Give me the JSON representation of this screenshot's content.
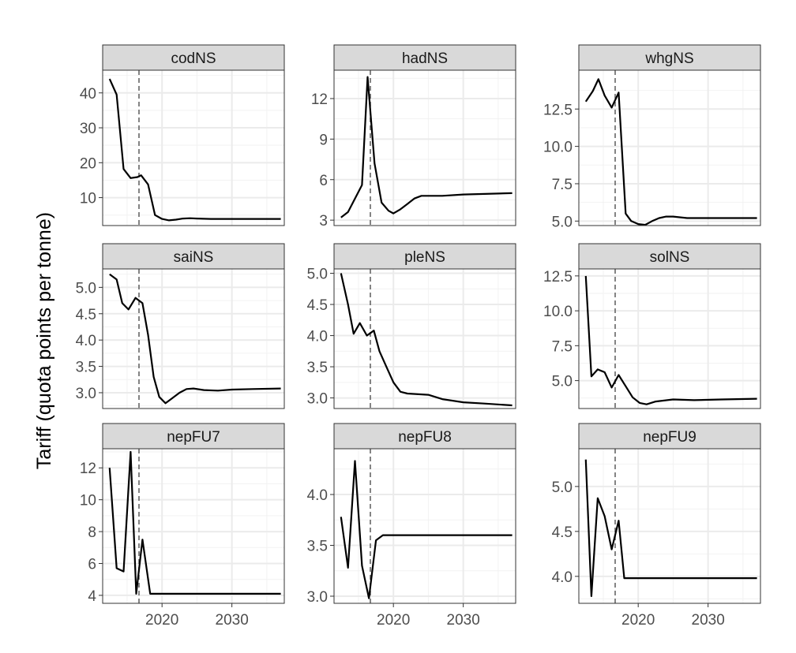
{
  "chart_data": {
    "type": "line",
    "ylabel": "Tariff (quota points per tonne)",
    "xlabel": "",
    "xlim": [
      2011.5,
      2037.5
    ],
    "x_ticks": [
      2020,
      2030
    ],
    "reference_line_x": 2016.7,
    "panels": [
      {
        "title": "codNS",
        "ylim": [
          2.0,
          46.5
        ],
        "y_ticks": [
          10,
          20,
          30,
          40
        ],
        "y_tick_labels": [
          "10",
          "20",
          "30",
          "40"
        ],
        "x": [
          2012.5,
          2013.5,
          2014.5,
          2015.5,
          2016.5,
          2017.0,
          2018.0,
          2019.0,
          2020.0,
          2021.0,
          2022.0,
          2023.0,
          2024.0,
          2025.0,
          2027.0,
          2030.0,
          2037.0
        ],
        "y": [
          44.0,
          39.5,
          18.2,
          15.6,
          15.9,
          16.4,
          13.8,
          5.0,
          3.9,
          3.5,
          3.7,
          4.0,
          4.1,
          4.0,
          3.9,
          3.9,
          3.9
        ]
      },
      {
        "title": "hadNS",
        "ylim": [
          2.6,
          14.1
        ],
        "y_ticks": [
          3,
          6,
          9,
          12
        ],
        "y_tick_labels": [
          "3",
          "6",
          "9",
          "12"
        ],
        "x": [
          2012.5,
          2013.5,
          2015.5,
          2016.3,
          2017.3,
          2018.3,
          2019.3,
          2020.0,
          2021.0,
          2022.0,
          2023.0,
          2024.0,
          2025.0,
          2027.0,
          2030.0,
          2037.0
        ],
        "y": [
          3.2,
          3.6,
          5.6,
          13.6,
          7.2,
          4.3,
          3.7,
          3.5,
          3.8,
          4.2,
          4.6,
          4.8,
          4.8,
          4.8,
          4.9,
          5.0
        ]
      },
      {
        "title": "whgNS",
        "ylim": [
          4.7,
          15.1
        ],
        "y_ticks": [
          5.0,
          7.5,
          10.0,
          12.5
        ],
        "y_tick_labels": [
          "5.0",
          "7.5",
          "10.0",
          "12.5"
        ],
        "x": [
          2012.5,
          2013.5,
          2014.3,
          2015.2,
          2016.2,
          2017.2,
          2018.2,
          2019.0,
          2020.0,
          2021.0,
          2022.0,
          2023.0,
          2024.0,
          2025.0,
          2027.0,
          2030.0,
          2037.0
        ],
        "y": [
          13.0,
          13.7,
          14.5,
          13.4,
          12.6,
          13.6,
          5.5,
          5.0,
          4.8,
          4.75,
          5.0,
          5.2,
          5.3,
          5.3,
          5.2,
          5.2,
          5.2
        ]
      },
      {
        "title": "saiNS",
        "ylim": [
          2.7,
          5.35
        ],
        "y_ticks": [
          3.0,
          3.5,
          4.0,
          4.5,
          5.0
        ],
        "y_tick_labels": [
          "3.0",
          "3.5",
          "4.0",
          "4.5",
          "5.0"
        ],
        "x": [
          2012.5,
          2013.5,
          2014.3,
          2015.2,
          2016.2,
          2017.2,
          2018.0,
          2018.8,
          2019.6,
          2020.5,
          2021.5,
          2022.5,
          2023.5,
          2024.5,
          2026.0,
          2028.0,
          2030.0,
          2033.0,
          2037.0
        ],
        "y": [
          5.25,
          5.15,
          4.7,
          4.58,
          4.8,
          4.7,
          4.1,
          3.3,
          2.92,
          2.8,
          2.9,
          3.0,
          3.07,
          3.08,
          3.05,
          3.04,
          3.06,
          3.07,
          3.08
        ]
      },
      {
        "title": "pleNS",
        "ylim": [
          2.83,
          5.07
        ],
        "y_ticks": [
          3.0,
          3.5,
          4.0,
          4.5,
          5.0
        ],
        "y_tick_labels": [
          "3.0",
          "3.5",
          "4.0",
          "4.5",
          "5.0"
        ],
        "x": [
          2012.5,
          2013.5,
          2014.3,
          2015.2,
          2016.2,
          2017.2,
          2018.0,
          2019.0,
          2020.0,
          2021.0,
          2022.0,
          2025.0,
          2027.0,
          2030.0,
          2033.0,
          2037.0
        ],
        "y": [
          5.0,
          4.5,
          4.03,
          4.2,
          4.0,
          4.08,
          3.75,
          3.5,
          3.25,
          3.1,
          3.07,
          3.05,
          2.98,
          2.93,
          2.91,
          2.88
        ]
      },
      {
        "title": "solNS",
        "ylim": [
          3.0,
          13.0
        ],
        "y_ticks": [
          5.0,
          7.5,
          10.0,
          12.5
        ],
        "y_tick_labels": [
          "5.0",
          "7.5",
          "10.0",
          "12.5"
        ],
        "x": [
          2012.5,
          2013.3,
          2014.2,
          2015.2,
          2016.2,
          2017.2,
          2018.2,
          2019.2,
          2020.2,
          2021.2,
          2022.5,
          2025.0,
          2028.0,
          2032.0,
          2037.0
        ],
        "y": [
          12.5,
          5.3,
          5.8,
          5.6,
          4.5,
          5.4,
          4.6,
          3.8,
          3.4,
          3.3,
          3.5,
          3.65,
          3.6,
          3.65,
          3.7
        ]
      },
      {
        "title": "nepFU7",
        "ylim": [
          3.5,
          13.2
        ],
        "y_ticks": [
          4,
          6,
          8,
          10,
          12
        ],
        "y_tick_labels": [
          "4",
          "6",
          "8",
          "10",
          "12"
        ],
        "x": [
          2012.5,
          2013.5,
          2014.5,
          2015.5,
          2016.3,
          2017.2,
          2018.3,
          2037.0
        ],
        "y": [
          12.0,
          5.7,
          5.5,
          13.0,
          4.1,
          7.5,
          4.1,
          4.1
        ]
      },
      {
        "title": "nepFU8",
        "ylim": [
          2.93,
          4.45
        ],
        "y_ticks": [
          3.0,
          3.5,
          4.0
        ],
        "y_tick_labels": [
          "3.0",
          "3.5",
          "4.0"
        ],
        "x": [
          2012.5,
          2013.5,
          2014.5,
          2015.5,
          2016.5,
          2017.5,
          2018.5,
          2037.0
        ],
        "y": [
          3.78,
          3.28,
          4.33,
          3.3,
          2.98,
          3.55,
          3.6,
          3.6
        ]
      },
      {
        "title": "nepFU9",
        "ylim": [
          3.7,
          5.42
        ],
        "y_ticks": [
          4.0,
          4.5,
          5.0
        ],
        "y_tick_labels": [
          "4.0",
          "4.5",
          "5.0"
        ],
        "x": [
          2012.5,
          2013.3,
          2014.2,
          2015.2,
          2016.2,
          2017.2,
          2018.0,
          2037.0
        ],
        "y": [
          5.3,
          3.78,
          4.87,
          4.67,
          4.3,
          4.62,
          3.98,
          3.98
        ]
      }
    ]
  }
}
